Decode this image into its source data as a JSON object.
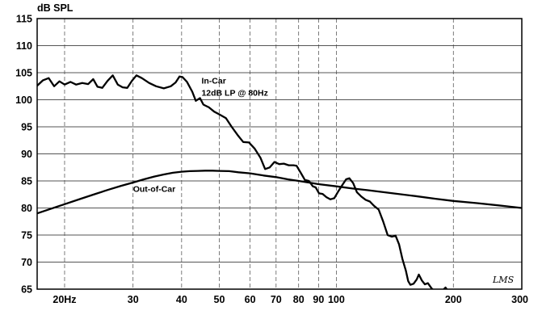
{
  "chart_data": {
    "type": "line",
    "title": "",
    "ylabel": "dB SPL",
    "xlabel": "",
    "x_scale": "log",
    "xlim": [
      17,
      300
    ],
    "ylim": [
      65,
      115
    ],
    "y_ticks": [
      65,
      70,
      75,
      80,
      85,
      90,
      95,
      100,
      105,
      110,
      115
    ],
    "x_tick_labels": [
      {
        "value": 20,
        "label": "20Hz"
      },
      {
        "value": 30,
        "label": "30"
      },
      {
        "value": 40,
        "label": "40"
      },
      {
        "value": 50,
        "label": "50"
      },
      {
        "value": 60,
        "label": "60"
      },
      {
        "value": 70,
        "label": "70"
      },
      {
        "value": 80,
        "label": "80"
      },
      {
        "value": 90,
        "label": "90"
      },
      {
        "value": 100,
        "label": "100"
      },
      {
        "value": 200,
        "label": "200"
      },
      {
        "value": 300,
        "label": "300"
      }
    ],
    "x_gridlines": [
      20,
      30,
      40,
      50,
      60,
      70,
      80,
      90,
      100,
      200
    ],
    "grid": true,
    "watermark": "LMS",
    "series": [
      {
        "name": "In-Car",
        "annotation": [
          "In-Car",
          "12dB LP @ 80Hz"
        ],
        "annotation_at": {
          "x": 45,
          "y": 103
        },
        "points": [
          [
            17,
            102.6
          ],
          [
            17.6,
            103.6
          ],
          [
            18.2,
            104.0
          ],
          [
            18.8,
            102.5
          ],
          [
            19.4,
            103.4
          ],
          [
            20,
            102.8
          ],
          [
            20.7,
            103.3
          ],
          [
            21.4,
            102.8
          ],
          [
            22.2,
            103.1
          ],
          [
            23,
            102.9
          ],
          [
            23.7,
            103.8
          ],
          [
            24.3,
            102.4
          ],
          [
            25,
            102.2
          ],
          [
            25.8,
            103.5
          ],
          [
            26.6,
            104.5
          ],
          [
            27.4,
            102.8
          ],
          [
            28.2,
            102.3
          ],
          [
            29,
            102.2
          ],
          [
            29.8,
            103.5
          ],
          [
            30.6,
            104.5
          ],
          [
            31.6,
            104.0
          ],
          [
            33,
            103.1
          ],
          [
            34.4,
            102.5
          ],
          [
            36,
            102.1
          ],
          [
            37.5,
            102.5
          ],
          [
            38.6,
            103.2
          ],
          [
            39.5,
            104.3
          ],
          [
            40.2,
            104.2
          ],
          [
            41.3,
            103.3
          ],
          [
            42.6,
            101.5
          ],
          [
            43.5,
            99.8
          ],
          [
            44.6,
            100.3
          ],
          [
            45.5,
            99.1
          ],
          [
            47,
            98.6
          ],
          [
            48.5,
            97.8
          ],
          [
            50,
            97.3
          ],
          [
            52,
            96.6
          ],
          [
            53.8,
            95.0
          ],
          [
            55.7,
            93.5
          ],
          [
            57.6,
            92.2
          ],
          [
            59.6,
            92.1
          ],
          [
            61.6,
            91.0
          ],
          [
            63.8,
            89.3
          ],
          [
            65.6,
            87.2
          ],
          [
            67.4,
            87.5
          ],
          [
            69.3,
            88.5
          ],
          [
            71.3,
            88.1
          ],
          [
            73.3,
            88.2
          ],
          [
            75.4,
            87.9
          ],
          [
            77.6,
            87.9
          ],
          [
            79,
            87.8
          ],
          [
            81,
            86.5
          ],
          [
            83,
            85.2
          ],
          [
            85,
            85.0
          ],
          [
            87,
            84.0
          ],
          [
            88.5,
            83.8
          ],
          [
            90.3,
            82.7
          ],
          [
            92.2,
            82.6
          ],
          [
            94.3,
            82.0
          ],
          [
            96.5,
            81.6
          ],
          [
            98.8,
            81.8
          ],
          [
            101,
            83.0
          ],
          [
            103.5,
            84.2
          ],
          [
            106,
            85.3
          ],
          [
            108,
            85.5
          ],
          [
            110.5,
            84.6
          ],
          [
            113,
            82.9
          ],
          [
            116,
            82.1
          ],
          [
            119,
            81.5
          ],
          [
            122,
            81.2
          ],
          [
            125,
            80.4
          ],
          [
            128.5,
            79.7
          ],
          [
            132,
            77.5
          ],
          [
            135.5,
            75.0
          ],
          [
            139,
            74.7
          ],
          [
            142,
            74.9
          ],
          [
            145,
            73.3
          ],
          [
            148,
            70.5
          ],
          [
            151,
            68.4
          ],
          [
            153,
            66.5
          ],
          [
            155,
            65.8
          ],
          [
            158,
            66.0
          ],
          [
            161,
            66.8
          ],
          [
            163,
            67.7
          ],
          [
            166,
            66.6
          ],
          [
            169,
            65.9
          ],
          [
            172,
            66.1
          ],
          [
            176,
            65.1
          ],
          [
            180,
            64.5
          ],
          [
            186,
            64.5
          ],
          [
            191,
            65.3
          ],
          [
            196,
            64.2
          ]
        ]
      },
      {
        "name": "Out-of-Car",
        "annotation": [
          "Out-of-Car"
        ],
        "annotation_at": {
          "x": 30,
          "y": 83
        },
        "points": [
          [
            17,
            79.0
          ],
          [
            18,
            79.6
          ],
          [
            20,
            80.7
          ],
          [
            22,
            81.7
          ],
          [
            24,
            82.6
          ],
          [
            26,
            83.4
          ],
          [
            28,
            84.1
          ],
          [
            30,
            84.7
          ],
          [
            32,
            85.3
          ],
          [
            34,
            85.8
          ],
          [
            36,
            86.2
          ],
          [
            38,
            86.5
          ],
          [
            40,
            86.7
          ],
          [
            42,
            86.8
          ],
          [
            44,
            86.85
          ],
          [
            46,
            86.9
          ],
          [
            48,
            86.9
          ],
          [
            50,
            86.85
          ],
          [
            53,
            86.8
          ],
          [
            56,
            86.6
          ],
          [
            60,
            86.4
          ],
          [
            65,
            86.0
          ],
          [
            70,
            85.7
          ],
          [
            75,
            85.3
          ],
          [
            80,
            85.0
          ],
          [
            85,
            84.7
          ],
          [
            90,
            84.4
          ],
          [
            100,
            84.0
          ],
          [
            110,
            83.6
          ],
          [
            120,
            83.3
          ],
          [
            140,
            82.7
          ],
          [
            160,
            82.2
          ],
          [
            180,
            81.7
          ],
          [
            200,
            81.3
          ],
          [
            230,
            80.9
          ],
          [
            260,
            80.5
          ],
          [
            300,
            80.0
          ]
        ]
      }
    ]
  }
}
